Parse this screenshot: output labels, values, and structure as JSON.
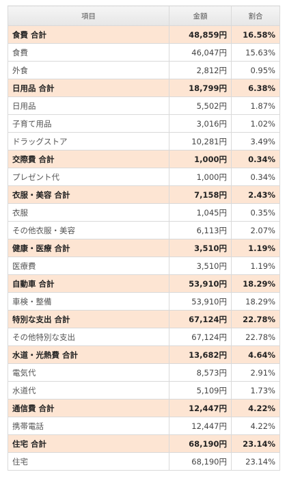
{
  "table": {
    "headers": [
      "項目",
      "金額",
      "割合"
    ],
    "rows": [
      {
        "type": "total",
        "name": "食費 合計",
        "amount": "48,859円",
        "ratio": "16.58%"
      },
      {
        "type": "item",
        "name": "食費",
        "amount": "46,047円",
        "ratio": "15.63%"
      },
      {
        "type": "item",
        "name": "外食",
        "amount": "2,812円",
        "ratio": "0.95%"
      },
      {
        "type": "total",
        "name": "日用品 合計",
        "amount": "18,799円",
        "ratio": "6.38%"
      },
      {
        "type": "item",
        "name": "日用品",
        "amount": "5,502円",
        "ratio": "1.87%"
      },
      {
        "type": "item",
        "name": "子育て用品",
        "amount": "3,016円",
        "ratio": "1.02%"
      },
      {
        "type": "item",
        "name": "ドラッグストア",
        "amount": "10,281円",
        "ratio": "3.49%"
      },
      {
        "type": "total",
        "name": "交際費 合計",
        "amount": "1,000円",
        "ratio": "0.34%"
      },
      {
        "type": "item",
        "name": "プレゼント代",
        "amount": "1,000円",
        "ratio": "0.34%"
      },
      {
        "type": "total",
        "name": "衣服・美容 合計",
        "amount": "7,158円",
        "ratio": "2.43%"
      },
      {
        "type": "item",
        "name": "衣服",
        "amount": "1,045円",
        "ratio": "0.35%"
      },
      {
        "type": "item",
        "name": "その他衣服・美容",
        "amount": "6,113円",
        "ratio": "2.07%"
      },
      {
        "type": "total",
        "name": "健康・医療 合計",
        "amount": "3,510円",
        "ratio": "1.19%"
      },
      {
        "type": "item",
        "name": "医療費",
        "amount": "3,510円",
        "ratio": "1.19%"
      },
      {
        "type": "total",
        "name": "自動車 合計",
        "amount": "53,910円",
        "ratio": "18.29%"
      },
      {
        "type": "item",
        "name": "車検・整備",
        "amount": "53,910円",
        "ratio": "18.29%"
      },
      {
        "type": "total",
        "name": "特別な支出 合計",
        "amount": "67,124円",
        "ratio": "22.78%"
      },
      {
        "type": "item",
        "name": "その他特別な支出",
        "amount": "67,124円",
        "ratio": "22.78%"
      },
      {
        "type": "total",
        "name": "水道・光熱費 合計",
        "amount": "13,682円",
        "ratio": "4.64%"
      },
      {
        "type": "item",
        "name": "電気代",
        "amount": "8,573円",
        "ratio": "2.91%"
      },
      {
        "type": "item",
        "name": "水道代",
        "amount": "5,109円",
        "ratio": "1.73%"
      },
      {
        "type": "total",
        "name": "通信費 合計",
        "amount": "12,447円",
        "ratio": "4.22%"
      },
      {
        "type": "item",
        "name": "携帯電話",
        "amount": "12,447円",
        "ratio": "4.22%"
      },
      {
        "type": "total",
        "name": "住宅 合計",
        "amount": "68,190円",
        "ratio": "23.14%"
      },
      {
        "type": "item",
        "name": "住宅",
        "amount": "68,190円",
        "ratio": "23.14%"
      }
    ]
  },
  "colors": {
    "total_row_bg": "#fde5d3",
    "header_bg": "#ededed",
    "border": "#d9d9d9"
  }
}
